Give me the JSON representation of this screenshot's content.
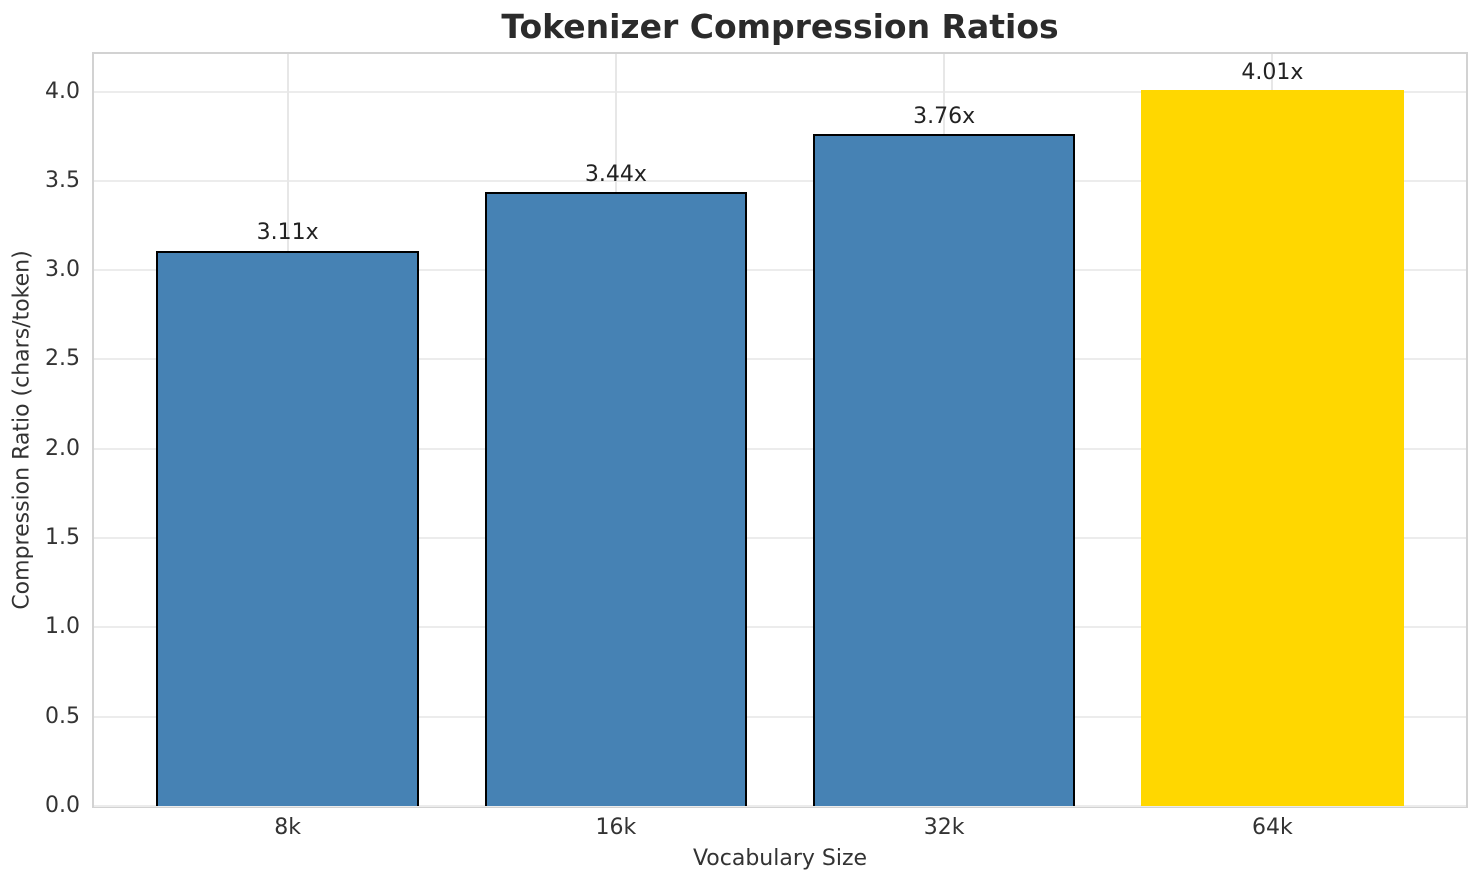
{
  "chart_data": {
    "type": "bar",
    "title": "Tokenizer Compression Ratios",
    "xlabel": "Vocabulary Size",
    "ylabel": "Compression Ratio (chars/token)",
    "categories": [
      "8k",
      "16k",
      "32k",
      "64k"
    ],
    "values": [
      3.11,
      3.44,
      3.76,
      4.01
    ],
    "bar_labels": [
      "3.11x",
      "3.44x",
      "3.76x",
      "4.01x"
    ],
    "bar_colors": [
      "#4682B4",
      "#4682B4",
      "#4682B4",
      "#FFD700"
    ],
    "bar_edge_colors": [
      "#000000",
      "#000000",
      "#000000",
      "none"
    ],
    "base_color": "#4682B4",
    "highlight_color": "#FFD700",
    "ytick_labels": [
      "0.0",
      "0.5",
      "1.0",
      "1.5",
      "2.0",
      "2.5",
      "3.0",
      "3.5",
      "4.0"
    ],
    "yticks": [
      0.0,
      0.5,
      1.0,
      1.5,
      2.0,
      2.5,
      3.0,
      3.5,
      4.0
    ],
    "ylim": [
      0,
      4.21
    ],
    "xlim": [
      -0.59,
      3.59
    ],
    "bar_width": 0.8,
    "grid": true,
    "legend": "none"
  }
}
